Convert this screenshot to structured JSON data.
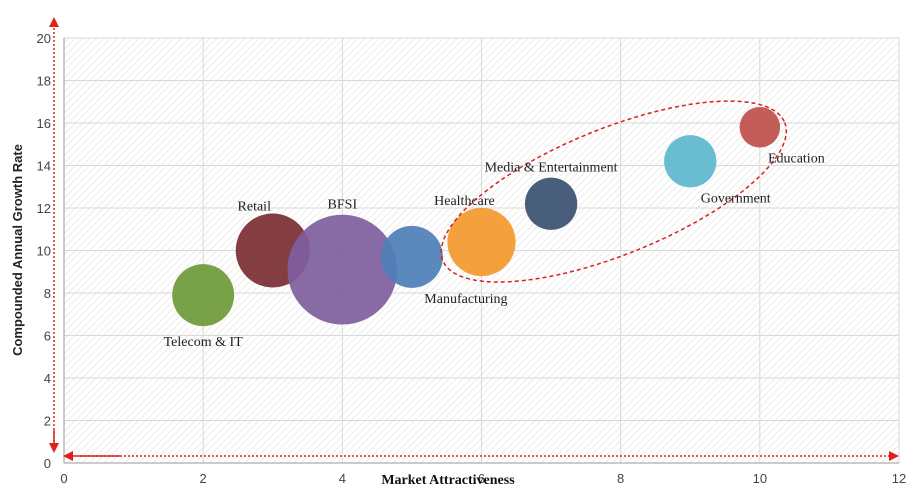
{
  "chart_data": {
    "type": "bubble",
    "xlabel": "Market Attractiveness",
    "ylabel": "Compounded Annual Growth Rate",
    "xlim": [
      0,
      12
    ],
    "ylim": [
      0,
      20
    ],
    "xticks": [
      0,
      2,
      4,
      6,
      8,
      10,
      12
    ],
    "yticks": [
      0,
      2,
      4,
      6,
      8,
      10,
      12,
      14,
      16,
      18,
      20
    ],
    "grid": true,
    "background": "hatched",
    "points": [
      {
        "label": "Telecom & IT",
        "x": 2.0,
        "y": 7.9,
        "size": 0.7,
        "color": "#6f9a3a",
        "label_pos": "below"
      },
      {
        "label": "Retail",
        "x": 3.0,
        "y": 10.0,
        "size": 1.0,
        "color": "#7b2e32",
        "label_pos": "above-left"
      },
      {
        "label": "BFSI",
        "x": 4.0,
        "y": 9.1,
        "size": 2.2,
        "color": "#7f5f9e",
        "label_pos": "above"
      },
      {
        "label": "Manufacturing",
        "x": 5.0,
        "y": 9.7,
        "size": 0.7,
        "color": "#4f7fb8",
        "label_pos": "below-right"
      },
      {
        "label": "Healthcare",
        "x": 6.0,
        "y": 10.4,
        "size": 0.85,
        "color": "#f39a2e",
        "label_pos": "above-left"
      },
      {
        "label": "Media & Entertainment",
        "x": 7.0,
        "y": 12.2,
        "size": 0.5,
        "color": "#3b5270",
        "label_pos": "above"
      },
      {
        "label": "Government",
        "x": 9.0,
        "y": 14.2,
        "size": 0.5,
        "color": "#5fb7cc",
        "label_pos": "below-right"
      },
      {
        "label": "Education",
        "x": 10.0,
        "y": 15.8,
        "size": 0.3,
        "color": "#c0504d",
        "label_pos": "below-right"
      }
    ],
    "highlight_ellipse": {
      "color": "#d9211f",
      "style": "dashed",
      "encloses": [
        "Healthcare",
        "Media & Entertainment",
        "Government",
        "Education"
      ]
    },
    "axis_arrow_color": "#e0201c"
  }
}
